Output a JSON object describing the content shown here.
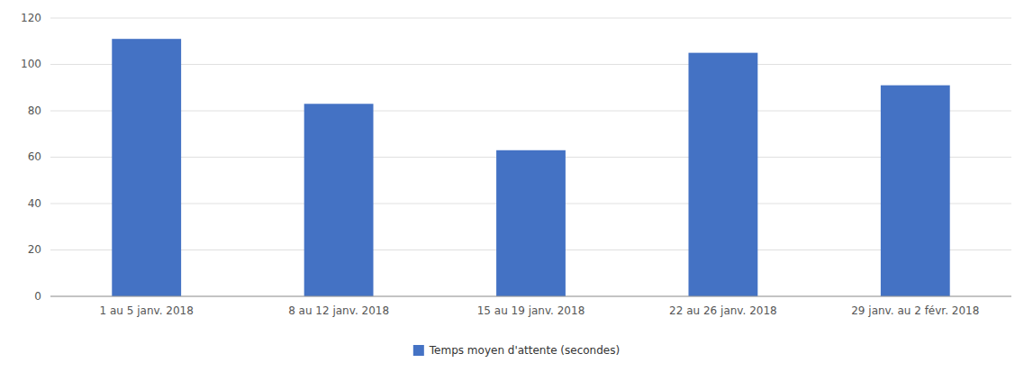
{
  "chart_data": {
    "type": "bar",
    "categories": [
      "1 au 5 janv. 2018",
      "8 au 12 janv. 2018",
      "15 au 19 janv. 2018",
      "22 au 26 janv. 2018",
      "29 janv. au 2 févr. 2018"
    ],
    "series": [
      {
        "name": "Temps moyen d'attente (secondes)",
        "color": "#4472C4",
        "values": [
          111,
          83,
          63,
          105,
          91
        ]
      }
    ],
    "ylim": [
      0,
      120
    ],
    "yticks": [
      0,
      20,
      40,
      60,
      80,
      100,
      120
    ],
    "grid": true,
    "legend": "bottom"
  }
}
